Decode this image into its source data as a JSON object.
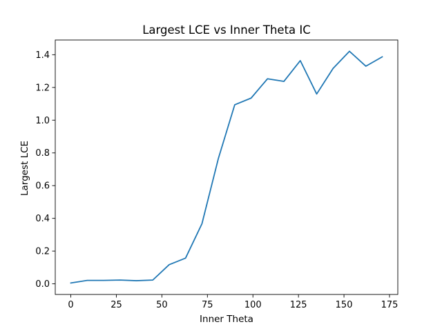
{
  "chart_data": {
    "type": "line",
    "title": "Largest LCE vs Inner Theta IC",
    "xlabel": "Inner Theta",
    "ylabel": "Largest LCE",
    "xlim": [
      -8.55,
      179.55
    ],
    "ylim": [
      -0.065,
      1.49
    ],
    "xticks": [
      0,
      25,
      50,
      75,
      100,
      125,
      150,
      175
    ],
    "yticks": [
      0.0,
      0.2,
      0.4,
      0.6,
      0.8,
      1.0,
      1.2,
      1.4
    ],
    "xtick_labels": [
      "0",
      "25",
      "50",
      "75",
      "100",
      "125",
      "150",
      "175"
    ],
    "ytick_labels": [
      "0.0",
      "0.2",
      "0.4",
      "0.6",
      "0.8",
      "1.0",
      "1.2",
      "1.4"
    ],
    "grid": false,
    "series": [
      {
        "color": "#1f77b4",
        "x": [
          0,
          9,
          18,
          27,
          36,
          45,
          54,
          63,
          72,
          81,
          90,
          99,
          108,
          117,
          126,
          135,
          144,
          153,
          162,
          171
        ],
        "y": [
          0.005,
          0.021,
          0.021,
          0.023,
          0.019,
          0.023,
          0.117,
          0.157,
          0.367,
          0.765,
          1.094,
          1.135,
          1.253,
          1.237,
          1.364,
          1.16,
          1.316,
          1.421,
          1.33,
          1.387
        ]
      }
    ]
  }
}
